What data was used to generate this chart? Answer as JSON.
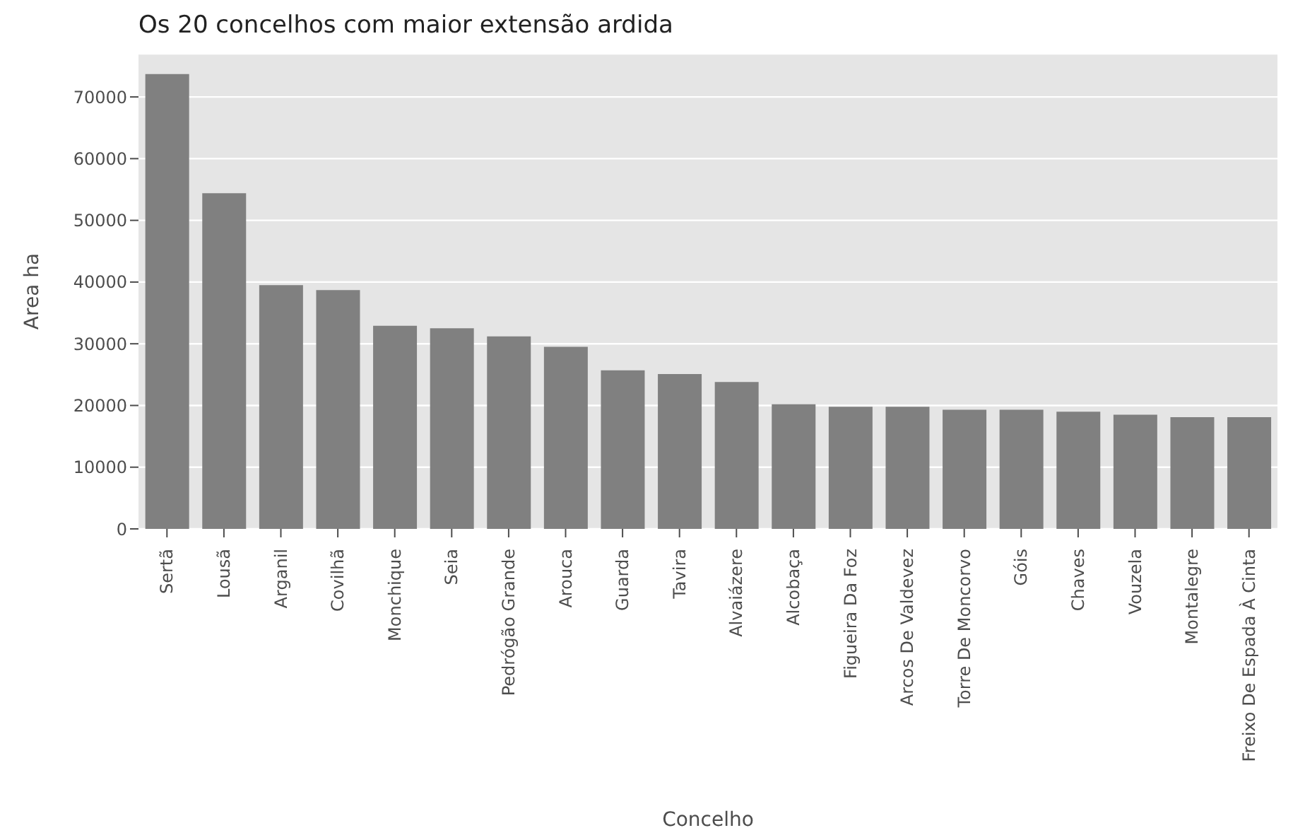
{
  "chart_data": {
    "type": "bar",
    "title": "Os 20 concelhos com maior extensão ardida",
    "xlabel": "Concelho",
    "ylabel": "Area ha",
    "categories": [
      "Sertã",
      "Lousã",
      "Arganil",
      "Covilhã",
      "Monchique",
      "Seia",
      "Pedrógão Grande",
      "Arouca",
      "Guarda",
      "Tavira",
      "Alvaiázere",
      "Alcobaça",
      "Figueira Da Foz",
      "Arcos De Valdevez",
      "Torre De Moncorvo",
      "Góis",
      "Chaves",
      "Vouzela",
      "Montalegre",
      "Freixo De Espada À Cinta"
    ],
    "values": [
      73700,
      54400,
      39500,
      38700,
      32900,
      32500,
      31200,
      29500,
      25700,
      25100,
      23800,
      20200,
      19800,
      19800,
      19300,
      19300,
      19000,
      18500,
      18100,
      18100
    ],
    "color": "#808080",
    "ylim": [
      0,
      77000
    ],
    "yticks": [
      0,
      10000,
      20000,
      30000,
      40000,
      50000,
      60000,
      70000
    ],
    "grid": "y"
  }
}
